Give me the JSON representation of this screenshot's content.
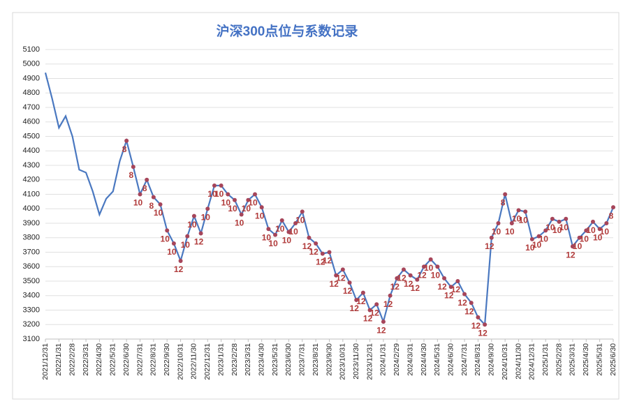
{
  "chart_data": {
    "type": "line",
    "title": "沪深300点位与系数记录",
    "categories": [
      "2021/12/31",
      null,
      "2022/1/31",
      null,
      "2022/2/28",
      null,
      "2022/3/31",
      null,
      "2022/4/30",
      null,
      "2022/5/31",
      null,
      "2022/6/30",
      null,
      "2022/7/31",
      null,
      "2022/8/31",
      null,
      "2022/9/30",
      null,
      "2022/10/31",
      null,
      "2022/11/30",
      null,
      "2022/12/31",
      null,
      "2023/1/31",
      null,
      "2023/2/28",
      null,
      "2023/3/31",
      null,
      "2023/4/30",
      null,
      "2023/5/31",
      null,
      "2023/6/30",
      null,
      "2023/7/31",
      null,
      "2023/8/31",
      null,
      "2023/9/30",
      null,
      "2023/10/31",
      null,
      "2023/11/30",
      null,
      "2023/12/31",
      null,
      "2024/1/31",
      null,
      "2024/2/29",
      null,
      "2024/3/31",
      null,
      "2024/4/30",
      null,
      "2024/5/31",
      null,
      "2024/6/30",
      null,
      "2024/7/31",
      null,
      "2024/8/31",
      null,
      "2024/9/30",
      null,
      "2024/10/31",
      null,
      "2024/11/30",
      null,
      "2024/12/31",
      null,
      "2025/1/31",
      null,
      "2025/2/28",
      null,
      "2025/3/31",
      null,
      "2025/4/30",
      null,
      "2025/5/31",
      null,
      "2025/6/30"
    ],
    "values": [
      4940,
      4760,
      4560,
      4640,
      4500,
      4270,
      4250,
      4120,
      3960,
      4070,
      4120,
      4330,
      4470,
      4290,
      4100,
      4200,
      4080,
      4030,
      3850,
      3760,
      3640,
      3810,
      3950,
      3830,
      4000,
      4160,
      4160,
      4100,
      4060,
      3960,
      4060,
      4100,
      4010,
      3860,
      3820,
      3920,
      3840,
      3900,
      3980,
      3800,
      3760,
      3690,
      3700,
      3540,
      3580,
      3490,
      3370,
      3420,
      3300,
      3340,
      3220,
      3400,
      3520,
      3580,
      3540,
      3510,
      3600,
      3650,
      3600,
      3520,
      3460,
      3500,
      3410,
      3350,
      3250,
      3200,
      3800,
      3900,
      4100,
      3900,
      3990,
      3980,
      3790,
      3810,
      3850,
      3930,
      3910,
      3930,
      3740,
      3800,
      3850,
      3910,
      3860,
      3900,
      4010
    ],
    "coefficients": [
      null,
      null,
      null,
      null,
      null,
      null,
      null,
      null,
      null,
      null,
      null,
      null,
      8,
      8,
      10,
      8,
      8,
      10,
      10,
      10,
      12,
      10,
      10,
      12,
      10,
      10,
      10,
      10,
      10,
      10,
      10,
      10,
      10,
      10,
      10,
      10,
      10,
      10,
      10,
      12,
      12,
      12,
      12,
      12,
      12,
      12,
      12,
      12,
      12,
      12,
      12,
      12,
      12,
      12,
      12,
      12,
      12,
      10,
      10,
      12,
      12,
      12,
      12,
      12,
      12,
      12,
      12,
      10,
      8,
      10,
      10,
      10,
      10,
      10,
      10,
      10,
      10,
      10,
      12,
      10,
      10,
      10,
      10,
      10,
      8
    ],
    "color": "#4a78c0",
    "marker_color": "#a6455a",
    "label_color": "#b03a3a",
    "ylim": [
      3100,
      5100
    ],
    "yticks": [
      3100,
      3200,
      3300,
      3400,
      3500,
      3600,
      3700,
      3800,
      3900,
      4000,
      4100,
      4200,
      4300,
      4400,
      4500,
      4600,
      4700,
      4800,
      4900,
      5000,
      5100
    ],
    "grid": true
  }
}
